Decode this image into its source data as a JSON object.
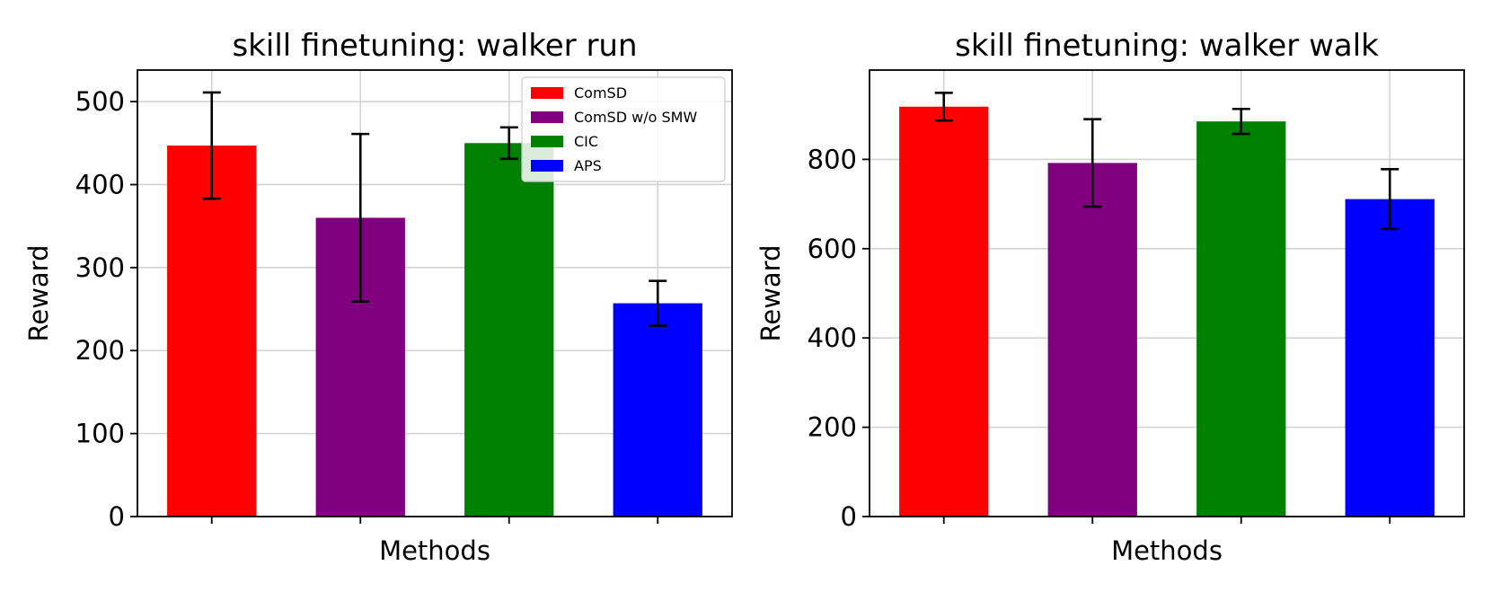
{
  "chart_data": [
    {
      "type": "bar",
      "title": "skill finetuning: walker run",
      "xlabel": "Methods",
      "ylabel": "Reward",
      "ylim": [
        0,
        538
      ],
      "yticks": [
        0,
        100,
        200,
        300,
        400,
        500
      ],
      "grid": true,
      "legend_position": "top-right",
      "series": [
        {
          "name": "ComSD",
          "value": 447,
          "error": 64,
          "color": "#ff0000"
        },
        {
          "name": "ComSD w/o SMW",
          "value": 360,
          "error": 101,
          "color": "#800080"
        },
        {
          "name": "CIC",
          "value": 450,
          "error": 19,
          "color": "#008000"
        },
        {
          "name": "APS",
          "value": 257,
          "error": 27,
          "color": "#0000ff"
        }
      ]
    },
    {
      "type": "bar",
      "title": "skill finetuning: walker walk",
      "xlabel": "Methods",
      "ylabel": "Reward",
      "ylim": [
        0,
        1000
      ],
      "yticks": [
        0,
        200,
        400,
        600,
        800
      ],
      "grid": true,
      "legend_position": "none",
      "series": [
        {
          "name": "ComSD",
          "value": 918,
          "error": 31,
          "color": "#ff0000"
        },
        {
          "name": "ComSD w/o SMW",
          "value": 792,
          "error": 98,
          "color": "#800080"
        },
        {
          "name": "CIC",
          "value": 885,
          "error": 28,
          "color": "#008000"
        },
        {
          "name": "APS",
          "value": 711,
          "error": 67,
          "color": "#0000ff"
        }
      ]
    }
  ]
}
